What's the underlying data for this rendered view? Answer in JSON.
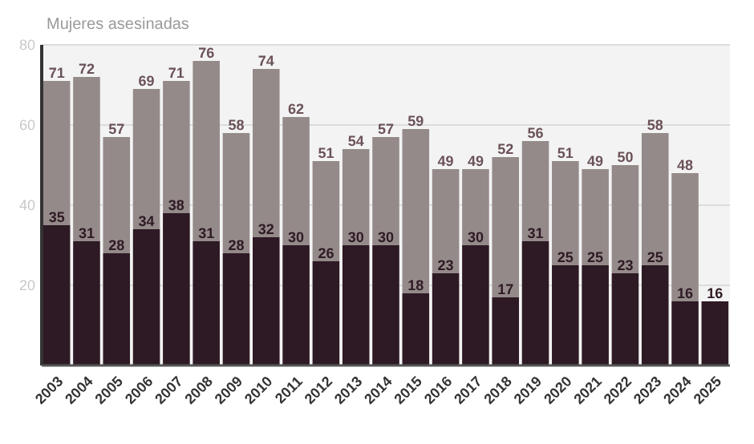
{
  "chart_data": {
    "type": "bar",
    "ylabel": "Mujeres asesinadas",
    "stacked": true,
    "categories": [
      "2003",
      "2004",
      "2005",
      "2006",
      "2007",
      "2008",
      "2009",
      "2010",
      "2011",
      "2012",
      "2013",
      "2014",
      "2015",
      "2016",
      "2017",
      "2018",
      "2019",
      "2020",
      "2021",
      "2022",
      "2023",
      "2024",
      "2025"
    ],
    "series": [
      {
        "color": "#2e1a24",
        "values": [
          35,
          31,
          28,
          34,
          38,
          31,
          28,
          32,
          30,
          26,
          30,
          30,
          18,
          23,
          30,
          17,
          31,
          25,
          25,
          23,
          25,
          16,
          16
        ],
        "value_labels": [
          "35",
          "31",
          "28",
          "34",
          "38",
          "31",
          "28",
          "32",
          "30",
          "26",
          "30",
          "30",
          "18",
          "23",
          "30",
          "17",
          "31",
          "25",
          "25",
          "23",
          "25",
          "16",
          "16"
        ]
      },
      {
        "color": "#958a8a",
        "values": [
          36,
          41,
          29,
          35,
          33,
          45,
          30,
          42,
          32,
          25,
          24,
          27,
          41,
          26,
          19,
          35,
          25,
          26,
          24,
          27,
          33,
          32,
          null
        ]
      }
    ],
    "totals": [
      "71",
      "72",
      "57",
      "69",
      "71",
      "76",
      "58",
      "74",
      "62",
      "51",
      "54",
      "57",
      "59",
      "49",
      "49",
      "52",
      "56",
      "51",
      "49",
      "50",
      "58",
      "48",
      null
    ],
    "ylim": [
      0,
      80
    ],
    "yticks": [
      20,
      40,
      60,
      80
    ],
    "grid": "y"
  }
}
